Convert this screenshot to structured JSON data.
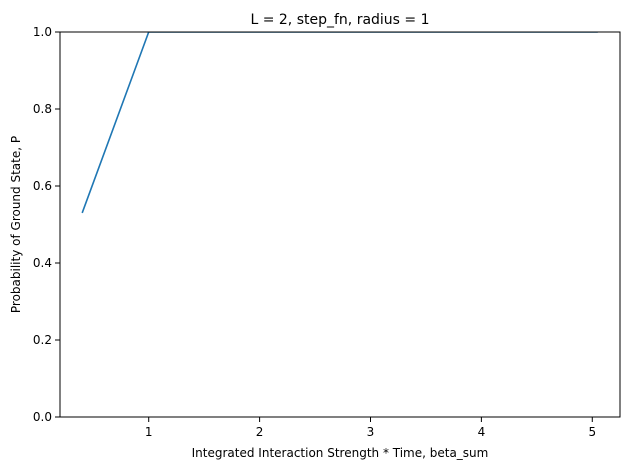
{
  "chart_data": {
    "type": "line",
    "title": "L = 2, step_fn, radius = 1",
    "xlabel": "Integrated Interaction Strength * Time, beta_sum",
    "ylabel": "Probability of Ground State, P",
    "xlim": [
      0.2,
      5.25
    ],
    "ylim": [
      0,
      1
    ],
    "xticks": [
      1,
      2,
      3,
      4,
      5
    ],
    "yticks": [
      0.0,
      0.2,
      0.4,
      0.6,
      0.8,
      1.0
    ],
    "xtick_labels": [
      "1",
      "2",
      "3",
      "4",
      "5"
    ],
    "ytick_labels": [
      "0.0",
      "0.2",
      "0.4",
      "0.6",
      "0.8",
      "1.0"
    ],
    "grid": false,
    "series": [
      {
        "color": "#1f77b4",
        "x": [
          0.4,
          1.0,
          1.5,
          2.0,
          2.5,
          3.0,
          3.5,
          4.0,
          4.5,
          5.05
        ],
        "y": [
          0.53,
          1.0,
          1.0,
          1.0,
          1.0,
          1.0,
          1.0,
          1.0,
          1.0,
          1.0
        ]
      }
    ]
  }
}
